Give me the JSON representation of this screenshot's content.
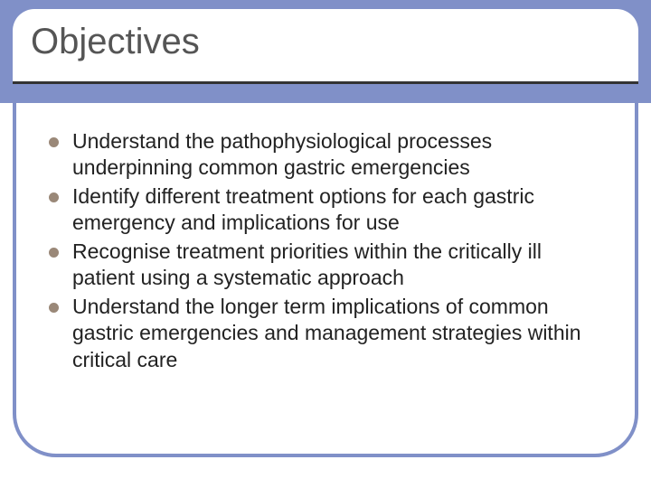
{
  "slide": {
    "title": "Objectives",
    "title_fontsize": 40,
    "title_color": "#555555",
    "header_band_color": "#8090c8",
    "frame_border_color": "#8090c8",
    "frame_border_width": 4,
    "frame_border_radius": 48,
    "title_underline_color": "#333333",
    "bullet_color": "#9a8878",
    "bullet_diameter": 11,
    "body_fontsize": 23,
    "body_color": "#222222",
    "background_color": "#ffffff",
    "bullets": [
      "Understand the pathophysiological processes underpinning common gastric emergencies",
      "Identify different treatment options for each gastric emergency and implications for use",
      "Recognise treatment priorities within the critically ill patient using a systematic approach",
      "Understand the longer term implications of common gastric emergencies and management strategies within critical care"
    ]
  }
}
